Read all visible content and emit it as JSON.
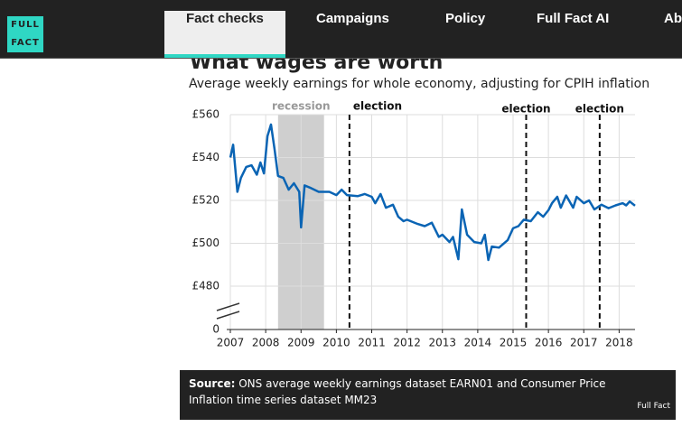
{
  "nav": {
    "logo": [
      "FULL",
      "FACT"
    ],
    "items": [
      "Fact checks",
      "Campaigns",
      "Policy",
      "Full Fact AI",
      "About"
    ],
    "active": 0
  },
  "chart_data": {
    "type": "line",
    "title": "What wages are worth",
    "subtitle": "Average weekly earnings for whole economy, adjusting for CPIH inflation",
    "color": "#0a64b4",
    "x": [
      2007.0,
      2007.08,
      2007.2,
      2007.3,
      2007.45,
      2007.6,
      2007.75,
      2007.85,
      2007.95,
      2008.05,
      2008.15,
      2008.25,
      2008.35,
      2008.5,
      2008.65,
      2008.8,
      2008.95,
      2009.0,
      2009.1,
      2009.25,
      2009.5,
      2009.8,
      2010.0,
      2010.15,
      2010.3,
      2010.6,
      2010.8,
      2011.0,
      2011.1,
      2011.25,
      2011.4,
      2011.6,
      2011.75,
      2011.9,
      2012.0,
      2012.3,
      2012.5,
      2012.7,
      2012.9,
      2013.0,
      2013.2,
      2013.3,
      2013.45,
      2013.55,
      2013.7,
      2013.9,
      2014.1,
      2014.2,
      2014.3,
      2014.4,
      2014.6,
      2014.85,
      2015.0,
      2015.15,
      2015.3,
      2015.5,
      2015.7,
      2015.85,
      2016.0,
      2016.1,
      2016.25,
      2016.35,
      2016.5,
      2016.7,
      2016.8,
      2017.0,
      2017.15,
      2017.3,
      2017.5,
      2017.7,
      2017.9,
      2018.1,
      2018.2,
      2018.3,
      2018.45
    ],
    "values": [
      540,
      546,
      524,
      530.5,
      535.6,
      536.4,
      532,
      537.7,
      532.6,
      550,
      555.4,
      544,
      531.4,
      530.5,
      525,
      528,
      524,
      507.4,
      527,
      526,
      524,
      524,
      522.5,
      525,
      522.5,
      522,
      523,
      521.7,
      518.7,
      523,
      516.6,
      518,
      512.4,
      510.3,
      511,
      509,
      508,
      509.6,
      503,
      504,
      500.6,
      503,
      492.6,
      515.8,
      504,
      500.6,
      500,
      504,
      492.2,
      498.5,
      498,
      501.5,
      507,
      508,
      511,
      510.3,
      514.5,
      512.4,
      515.4,
      518.7,
      521.7,
      516.6,
      522.3,
      516.6,
      521.7,
      518.7,
      520,
      515.8,
      518,
      516.4,
      517.7,
      518.7,
      517.7,
      519.5,
      517.5
    ],
    "xlim": [
      2007,
      2018.45
    ],
    "xticks": [
      2007,
      2008,
      2009,
      2010,
      2011,
      2012,
      2013,
      2014,
      2015,
      2016,
      2017,
      2018
    ],
    "ylim": [
      480,
      560
    ],
    "yticks": [
      {
        "value": 560,
        "label": "£560"
      },
      {
        "value": 540,
        "label": "£540"
      },
      {
        "value": 520,
        "label": "£520"
      },
      {
        "value": 500,
        "label": "£500"
      },
      {
        "value": 480,
        "label": "£480"
      },
      0
    ],
    "grid": true,
    "shaded": {
      "label": "recession",
      "x": [
        2008.35,
        2009.65
      ]
    },
    "vlines": [
      {
        "label": "election",
        "x": 2010.37
      },
      {
        "label": "election",
        "x": 2015.37
      },
      {
        "label": "election",
        "x": 2017.45
      }
    ]
  },
  "source": {
    "label": "Source:",
    "text": "ONS average weekly earnings dataset EARN01 and Consumer Price Inflation time series dataset MM23",
    "brand": "Full Fact"
  }
}
